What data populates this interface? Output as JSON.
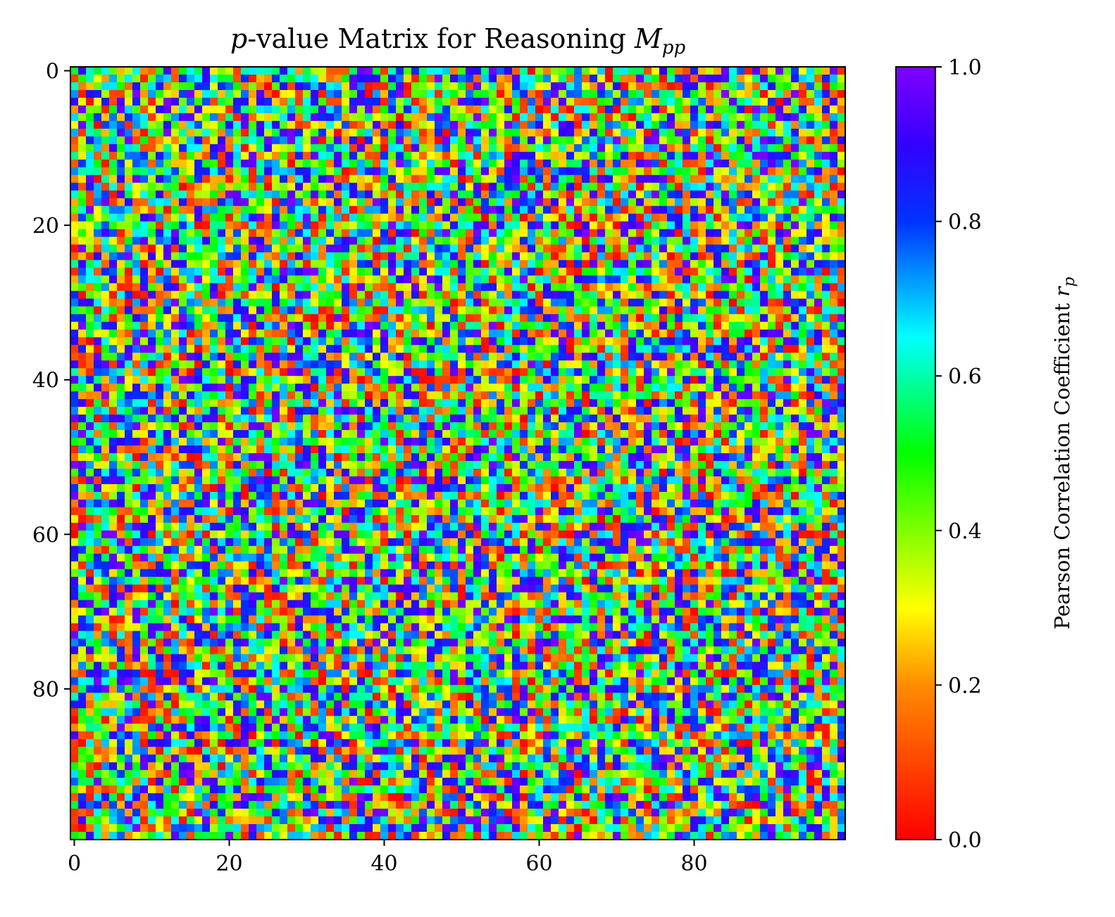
{
  "chart_data": {
    "type": "heatmap",
    "title": "p-value Matrix for Reasoning M_pp",
    "title_parts": {
      "p": "p",
      "main": "-value Matrix for Reasoning ",
      "M": "M",
      "sub": "pp"
    },
    "rows": 100,
    "cols": 100,
    "x_ticks": [
      0,
      20,
      40,
      60,
      80
    ],
    "y_ticks": [
      0,
      20,
      40,
      60,
      80
    ],
    "x_tick_labels": [
      "0",
      "20",
      "40",
      "60",
      "80"
    ],
    "y_tick_labels": [
      "0",
      "20",
      "40",
      "60",
      "80"
    ],
    "xlabel": "",
    "ylabel": "",
    "colorbar": {
      "label": "Pearson Correlation Coefficient r_p",
      "label_parts": {
        "main": "Pearson Correlation Coefficient ",
        "r": "r",
        "sub": "p"
      },
      "ticks": [
        0.0,
        0.2,
        0.4,
        0.6,
        0.8,
        1.0
      ],
      "tick_labels": [
        "0.0",
        "0.2",
        "0.4",
        "0.6",
        "0.8",
        "1.0"
      ],
      "range": [
        0.0,
        1.0
      ],
      "colormap": "gist_rainbow_reversed",
      "color_stops": [
        {
          "value": 0.0,
          "color": "#ff0000"
        },
        {
          "value": 0.2,
          "color": "#ff8c00"
        },
        {
          "value": 0.3,
          "color": "#ffff00"
        },
        {
          "value": 0.5,
          "color": "#00ff00"
        },
        {
          "value": 0.65,
          "color": "#00ffff"
        },
        {
          "value": 0.8,
          "color": "#0033ff"
        },
        {
          "value": 0.9,
          "color": "#3300ff"
        },
        {
          "value": 1.0,
          "color": "#8000ff"
        }
      ]
    },
    "value_distribution": "approximately uniform random p-values in [0, 1], 100x100 cells",
    "grid": false,
    "legend": "none"
  }
}
